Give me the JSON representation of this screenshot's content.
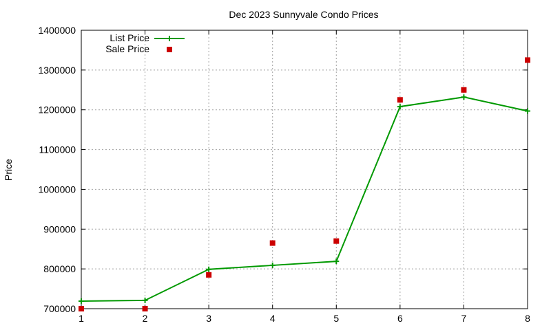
{
  "chart_data": {
    "type": "line",
    "title": "Dec 2023 Sunnyvale Condo Prices",
    "xlabel": "",
    "ylabel": "Price",
    "xlim": [
      1,
      8
    ],
    "ylim": [
      700000,
      1400000
    ],
    "xticks": [
      "1",
      "2",
      "3",
      "4",
      "5",
      "6",
      "7",
      "8"
    ],
    "yticks": [
      "700000",
      "800000",
      "900000",
      "1000000",
      "1100000",
      "1200000",
      "1300000",
      "1400000"
    ],
    "grid": true,
    "legend_position": "top-left",
    "series": [
      {
        "name": "List Price",
        "style": "lines+points",
        "color": "#009900",
        "x": [
          1,
          2,
          3,
          4,
          5,
          6,
          7,
          8
        ],
        "y": [
          719000,
          721000,
          799000,
          809000,
          819000,
          1208000,
          1232000,
          1197000
        ]
      },
      {
        "name": "Sale Price",
        "style": "points",
        "color": "#cc0000",
        "x": [
          1,
          2,
          3,
          4,
          5,
          6,
          7,
          8
        ],
        "y": [
          700000,
          700000,
          785000,
          865000,
          870000,
          1225000,
          1250000,
          1325000
        ]
      }
    ]
  }
}
